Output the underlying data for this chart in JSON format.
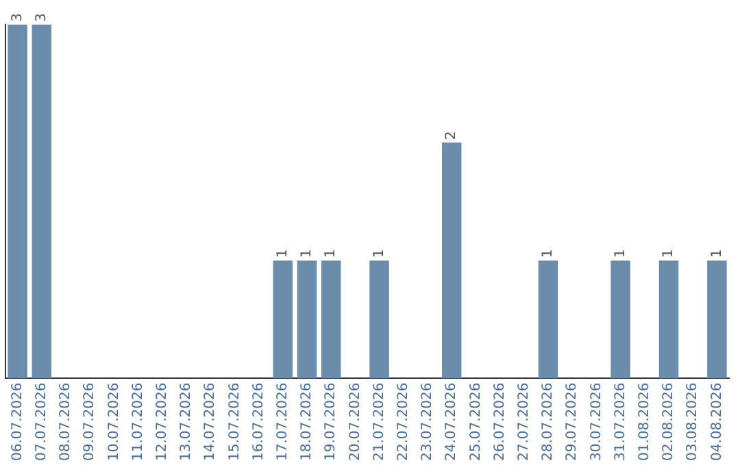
{
  "chart_data": {
    "type": "bar",
    "categories": [
      "06.07.2026",
      "07.07.2026",
      "08.07.2026",
      "09.07.2026",
      "10.07.2026",
      "11.07.2026",
      "12.07.2026",
      "13.07.2026",
      "14.07.2026",
      "15.07.2026",
      "16.07.2026",
      "17.07.2026",
      "18.07.2026",
      "19.07.2026",
      "20.07.2026",
      "21.07.2026",
      "22.07.2026",
      "23.07.2026",
      "24.07.2026",
      "25.07.2026",
      "26.07.2026",
      "27.07.2026",
      "28.07.2026",
      "29.07.2026",
      "30.07.2026",
      "31.07.2026",
      "01.08.2026",
      "02.08.2026",
      "03.08.2026",
      "04.08.2026"
    ],
    "values": [
      3,
      3,
      0,
      0,
      0,
      0,
      0,
      0,
      0,
      0,
      0,
      1,
      1,
      1,
      0,
      1,
      0,
      0,
      2,
      0,
      0,
      0,
      1,
      0,
      0,
      1,
      0,
      1,
      0,
      1
    ],
    "value_labels": [
      "3",
      "3",
      null,
      null,
      null,
      null,
      null,
      null,
      null,
      null,
      null,
      "1",
      "1",
      "1",
      null,
      "1",
      null,
      null,
      "2",
      null,
      null,
      null,
      "1",
      null,
      null,
      "1",
      null,
      "1",
      null,
      "1"
    ],
    "color": "#6b8cab",
    "ylim": [
      0,
      3
    ],
    "tick_labels": "x",
    "grid": false,
    "legend": false
  }
}
